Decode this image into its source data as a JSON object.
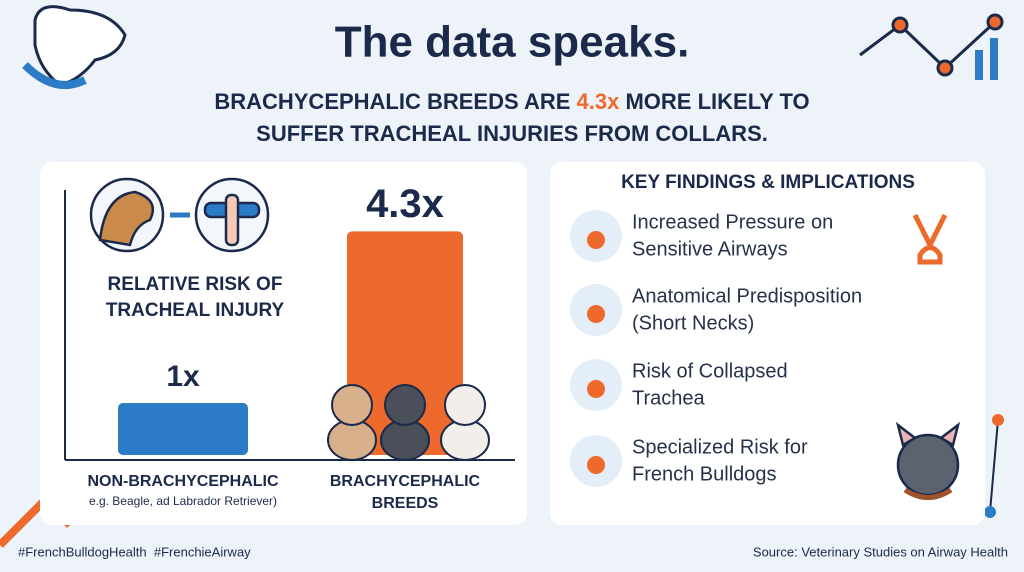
{
  "title": "The data speaks.",
  "subtitle": [
    "BRACHYCEPHALIC BREEDS ARE ",
    "4.3x",
    " MORE LIKELY TO",
    "SUFFER TRACHEAL INJURIES FROM COLLARS."
  ],
  "chart_data": {
    "type": "bar",
    "ylabel": [
      "RELATIVE RISK OF",
      "TRACHEAL INJURY"
    ],
    "categories": [
      [
        "NON-BRACHYCEPHALIC"
      ],
      [
        "BRACHYCEPHALIC",
        "BREEDS"
      ]
    ],
    "x_note": "e.g. Beagle, ad Labrador Retriever)",
    "values": [
      1,
      4.3
    ],
    "value_labels": [
      "1x",
      "4.3x"
    ],
    "colors": [
      "#2b7bc6",
      "#ee6a2c"
    ]
  },
  "findings": {
    "title": "KEY FINDINGS & IMPLICATIONS",
    "items": [
      [
        "Increased Pressure on",
        "Sensitive Airways"
      ],
      [
        "Anatomical Predisposition",
        "(Short Necks)"
      ],
      [
        "Risk of Collapsed",
        "Trachea"
      ],
      [
        "Specialized Risk for",
        "French Bulldogs"
      ]
    ]
  },
  "hashtags": "#FrenchBulldogHealth  #FrenchieAirway",
  "source": "Source: Veterinary Studies on Airway Health"
}
